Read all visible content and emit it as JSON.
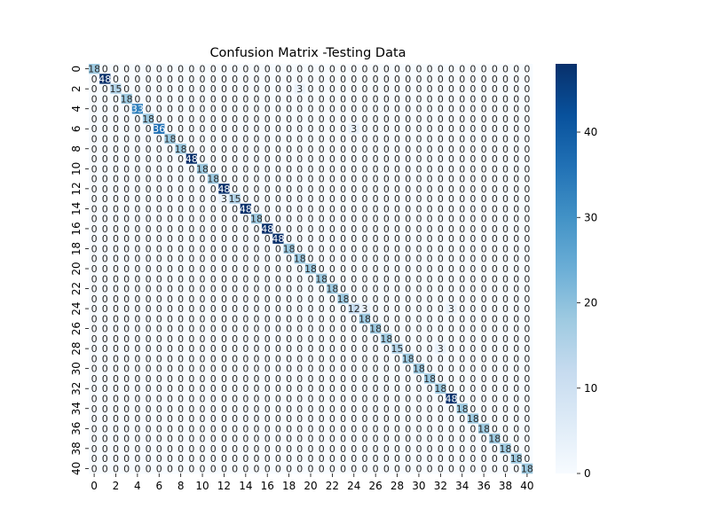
{
  "chart_data": {
    "type": "heatmap",
    "title": "Confusion Matrix -Testing Data",
    "xlabel": "",
    "ylabel": "",
    "size": 41,
    "x_tick_labels": [
      "0",
      "2",
      "4",
      "6",
      "8",
      "10",
      "12",
      "14",
      "16",
      "18",
      "20",
      "22",
      "24",
      "26",
      "28",
      "30",
      "32",
      "34",
      "36",
      "38",
      "40"
    ],
    "y_tick_labels": [
      "0",
      "2",
      "4",
      "6",
      "8",
      "10",
      "12",
      "14",
      "16",
      "18",
      "20",
      "22",
      "24",
      "26",
      "28",
      "30",
      "32",
      "34",
      "36",
      "38",
      "40"
    ],
    "diagonal": [
      18,
      48,
      15,
      18,
      33,
      18,
      36,
      18,
      18,
      48,
      18,
      18,
      48,
      15,
      48,
      18,
      48,
      48,
      18,
      18,
      18,
      18,
      18,
      18,
      12,
      18,
      18,
      18,
      15,
      18,
      18,
      18,
      18,
      48,
      18,
      18,
      18,
      18,
      18,
      18,
      18
    ],
    "off_diagonal": [
      {
        "row": 2,
        "col": 19,
        "value": 3
      },
      {
        "row": 6,
        "col": 24,
        "value": 3
      },
      {
        "row": 13,
        "col": 12,
        "value": 3
      },
      {
        "row": 24,
        "col": 33,
        "value": 3
      },
      {
        "row": 24,
        "col": 25,
        "value": 3
      },
      {
        "row": 28,
        "col": 32,
        "value": 3
      }
    ],
    "colorbar": {
      "colormap": "Blues",
      "vmin": 0,
      "vmax": 48,
      "ticks": [
        0,
        10,
        20,
        30,
        40
      ]
    }
  }
}
